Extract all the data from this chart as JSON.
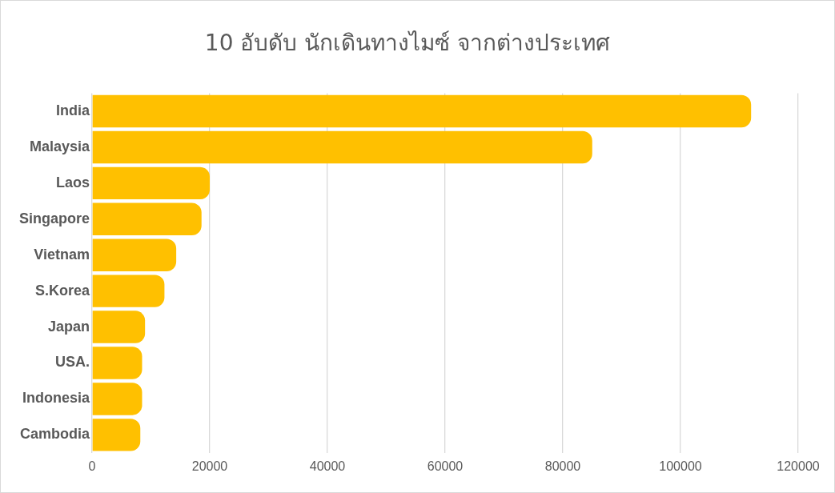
{
  "chart_data": {
    "type": "bar",
    "orientation": "horizontal",
    "title": "10 อับดับ นักเดินทางไมซ์ จากต่างประเทศ",
    "categories": [
      "India",
      "Malaysia",
      "Laos",
      "Singapore",
      "Vietnam",
      "S.Korea",
      "Japan",
      "USA.",
      "Indonesia",
      "Cambodia"
    ],
    "values": [
      112000,
      85000,
      20000,
      18600,
      14300,
      12300,
      9000,
      8500,
      8500,
      8200
    ],
    "color": "#ffc000",
    "xlim": [
      0,
      120000
    ],
    "xticks": [
      0,
      20000,
      40000,
      60000,
      80000,
      100000,
      120000
    ],
    "grid": "x",
    "legend": false
  }
}
